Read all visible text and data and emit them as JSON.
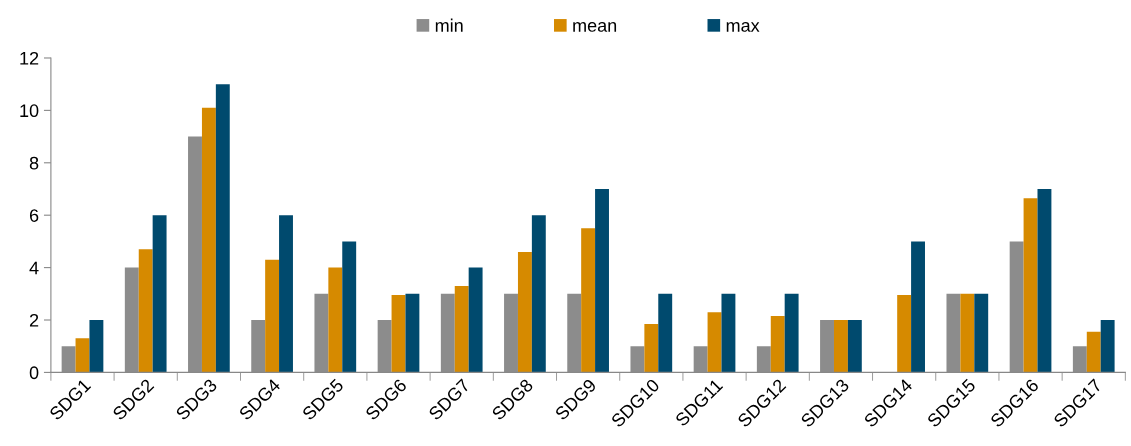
{
  "chart_data": {
    "type": "bar",
    "categories": [
      "SDG1",
      "SDG2",
      "SDG3",
      "SDG4",
      "SDG5",
      "SDG6",
      "SDG7",
      "SDG8",
      "SDG9",
      "SDG10",
      "SDG11",
      "SDG12",
      "SDG13",
      "SDG14",
      "SDG15",
      "SDG16",
      "SDG17"
    ],
    "series": [
      {
        "name": "min",
        "color": "#8c8c8c",
        "values": [
          1,
          4,
          9,
          2,
          3,
          2,
          3,
          3,
          3,
          1,
          1,
          1,
          2,
          0,
          3,
          5,
          1
        ]
      },
      {
        "name": "mean",
        "color": "#d68a00",
        "values": [
          1.3,
          4.7,
          10.1,
          4.3,
          4.0,
          2.95,
          3.3,
          4.6,
          5.5,
          1.85,
          2.3,
          2.15,
          2,
          2.95,
          3,
          6.65,
          1.55
        ]
      },
      {
        "name": "max",
        "color": "#004a6e",
        "values": [
          2,
          6,
          11,
          6,
          5,
          3,
          4,
          6,
          7,
          3,
          3,
          3,
          2,
          5,
          3,
          7,
          2
        ]
      }
    ],
    "ylim": [
      0,
      12
    ],
    "yticks": [
      0,
      2,
      4,
      6,
      8,
      10,
      12
    ],
    "grid": false,
    "legend": "top"
  }
}
